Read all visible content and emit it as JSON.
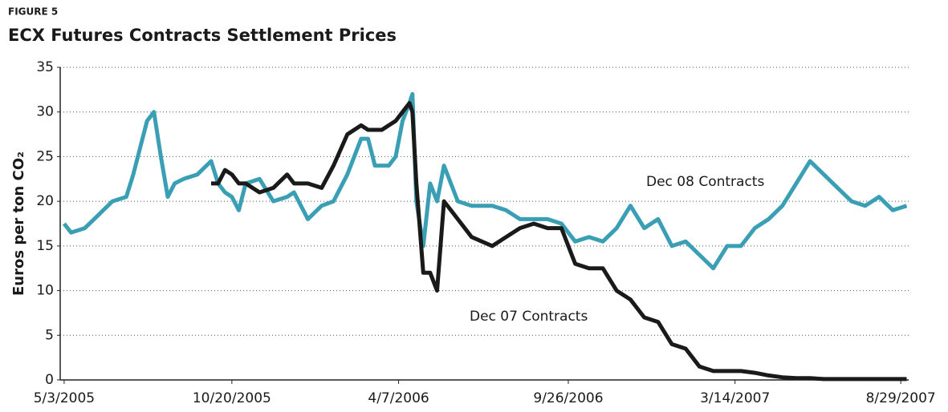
{
  "chart_data": {
    "type": "line",
    "figure_label": "FIGURE 5",
    "title": "ECX Futures Contracts Settlement Prices",
    "y_label": "Euros per ton CO₂",
    "x": [
      "5/3/2005",
      "5/10/2005",
      "5/24/2005",
      "6/7/2005",
      "6/21/2005",
      "7/5/2005",
      "7/12/2005",
      "7/19/2005",
      "7/26/2005",
      "8/2/2005",
      "8/9/2005",
      "8/16/2005",
      "8/23/2005",
      "9/1/2005",
      "9/15/2005",
      "9/29/2005",
      "10/6/2005",
      "10/13/2005",
      "10/20/2005",
      "10/27/2005",
      "11/3/2005",
      "11/17/2005",
      "12/1/2005",
      "12/15/2005",
      "12/22/2005",
      "1/5/2006",
      "1/19/2006",
      "1/31/2006",
      "2/14/2006",
      "2/28/2006",
      "3/7/2006",
      "3/14/2006",
      "3/21/2006",
      "3/28/2006",
      "4/4/2006",
      "4/11/2006",
      "4/18/2006",
      "4/21/2006",
      "4/25/2006",
      "5/2/2006",
      "5/9/2006",
      "5/16/2006",
      "5/23/2006",
      "6/6/2006",
      "6/20/2006",
      "7/11/2006",
      "7/25/2006",
      "8/8/2006",
      "8/22/2006",
      "9/5/2006",
      "9/19/2006",
      "10/3/2006",
      "10/17/2006",
      "10/31/2006",
      "11/14/2006",
      "11/28/2006",
      "12/12/2006",
      "12/26/2006",
      "1/9/2007",
      "1/23/2007",
      "2/6/2007",
      "2/20/2007",
      "3/6/2007",
      "3/20/2007",
      "4/3/2007",
      "4/17/2007",
      "5/1/2007",
      "5/15/2007",
      "5/29/2007",
      "6/12/2007",
      "6/26/2007",
      "7/10/2007",
      "7/24/2007",
      "8/7/2007",
      "8/21/2007",
      "9/4/2007"
    ],
    "series": [
      {
        "name": "Dec 08 Contracts",
        "color": "#3a9fb5",
        "values": [
          17.5,
          16.5,
          17,
          18.5,
          20,
          20.5,
          23,
          26,
          29,
          30,
          25,
          20.5,
          22,
          22.5,
          23,
          24.5,
          22,
          21,
          20.5,
          19,
          22,
          22.5,
          20,
          20.5,
          21,
          18,
          19.5,
          20,
          23,
          27,
          27,
          24,
          24,
          24,
          25,
          29,
          31,
          32,
          20,
          15,
          22,
          20,
          24,
          20,
          19.5,
          19.5,
          19,
          18,
          18,
          18,
          17.5,
          15.5,
          16,
          15.5,
          17,
          19.5,
          17,
          18,
          15,
          15.5,
          14,
          12.5,
          15,
          15,
          17,
          18,
          19.5,
          22,
          24.5,
          23,
          21.5,
          20,
          19.5,
          20.5,
          19,
          19.5
        ]
      },
      {
        "name": "Dec 07 Contracts",
        "color": "#1a1a1a",
        "values": [
          null,
          null,
          null,
          null,
          null,
          null,
          null,
          null,
          null,
          null,
          null,
          null,
          null,
          null,
          null,
          22,
          22,
          23.5,
          23,
          22,
          22,
          21,
          21.5,
          23,
          22,
          22,
          21.5,
          24,
          27.5,
          28.5,
          28,
          28,
          28,
          28.5,
          29,
          30,
          31,
          30,
          22,
          12,
          12,
          10,
          20,
          18,
          16,
          15,
          16,
          17,
          17.5,
          17,
          17,
          13,
          12.5,
          12.5,
          10,
          9,
          7,
          6.5,
          4,
          3.5,
          1.5,
          1,
          1,
          1,
          0.8,
          0.5,
          0.3,
          0.2,
          0.2,
          0.1,
          0.1,
          0.1,
          0.1,
          0.1,
          0.1,
          0.1
        ]
      }
    ],
    "annotations": [
      "Dec 08 Contracts",
      "Dec 07 Contracts"
    ],
    "xlim": [
      "4/29/2005",
      "9/6/2007"
    ],
    "xticks": [
      "5/3/2005",
      "10/20/2005",
      "4/7/2006",
      "9/26/2006",
      "3/14/2007",
      "8/29/2007"
    ],
    "ylim": [
      0,
      35
    ],
    "yticks": [
      0,
      5,
      10,
      15,
      20,
      25,
      30,
      35
    ],
    "grid": true
  }
}
